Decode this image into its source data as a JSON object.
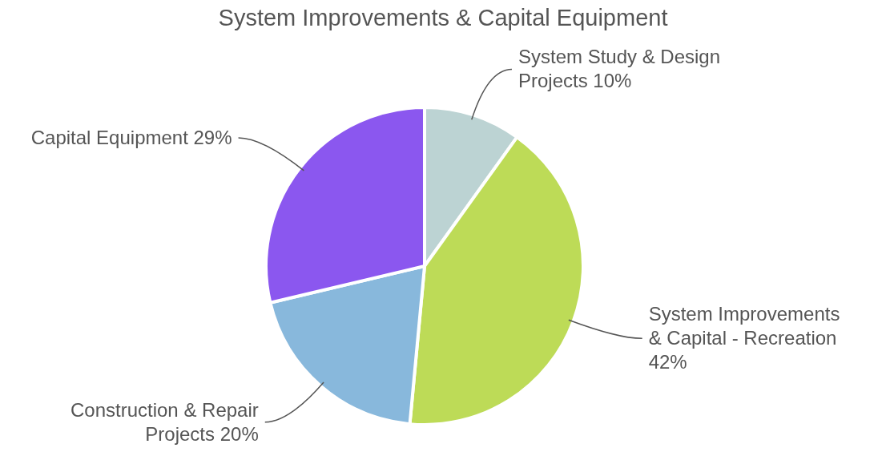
{
  "chart_data": {
    "type": "pie",
    "title": "System Improvements & Capital Equipment",
    "categories": [
      "System Study & Design Projects",
      "System Improvements & Capital - Recreation",
      "Construction & Repair Projects",
      "Capital Equipment"
    ],
    "values": [
      10,
      42,
      20,
      29
    ],
    "value_labels": [
      "10%",
      "42%",
      "20%",
      "29%"
    ],
    "colors": [
      "#bcd3d3",
      "#bddb57",
      "#88b8dc",
      "#8b57ef"
    ],
    "legend": false
  }
}
